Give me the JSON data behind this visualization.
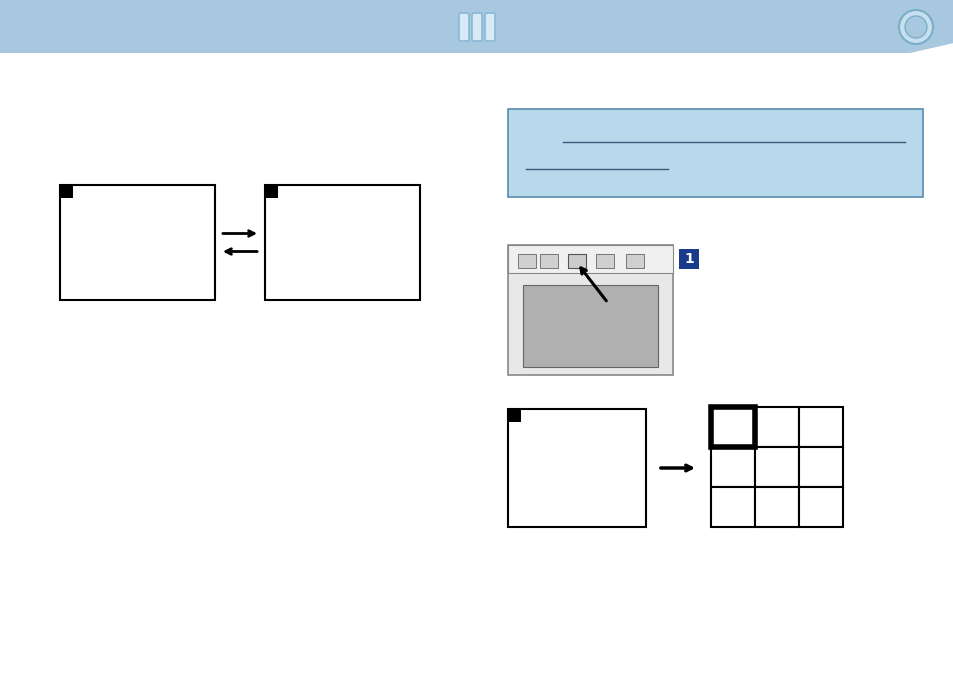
{
  "header_color": "#a8c8e0",
  "bg_color": "#ffffff",
  "blue_box_color": "#b8d8ec",
  "blue_box_border": "#5a8aaa",
  "box_border_color": "#000000",
  "corner_mark_color": "#000000",
  "arrow_color": "#000000",
  "num_badge_color": "#1a3a8a",
  "num_badge_text_color": "#ffffff"
}
